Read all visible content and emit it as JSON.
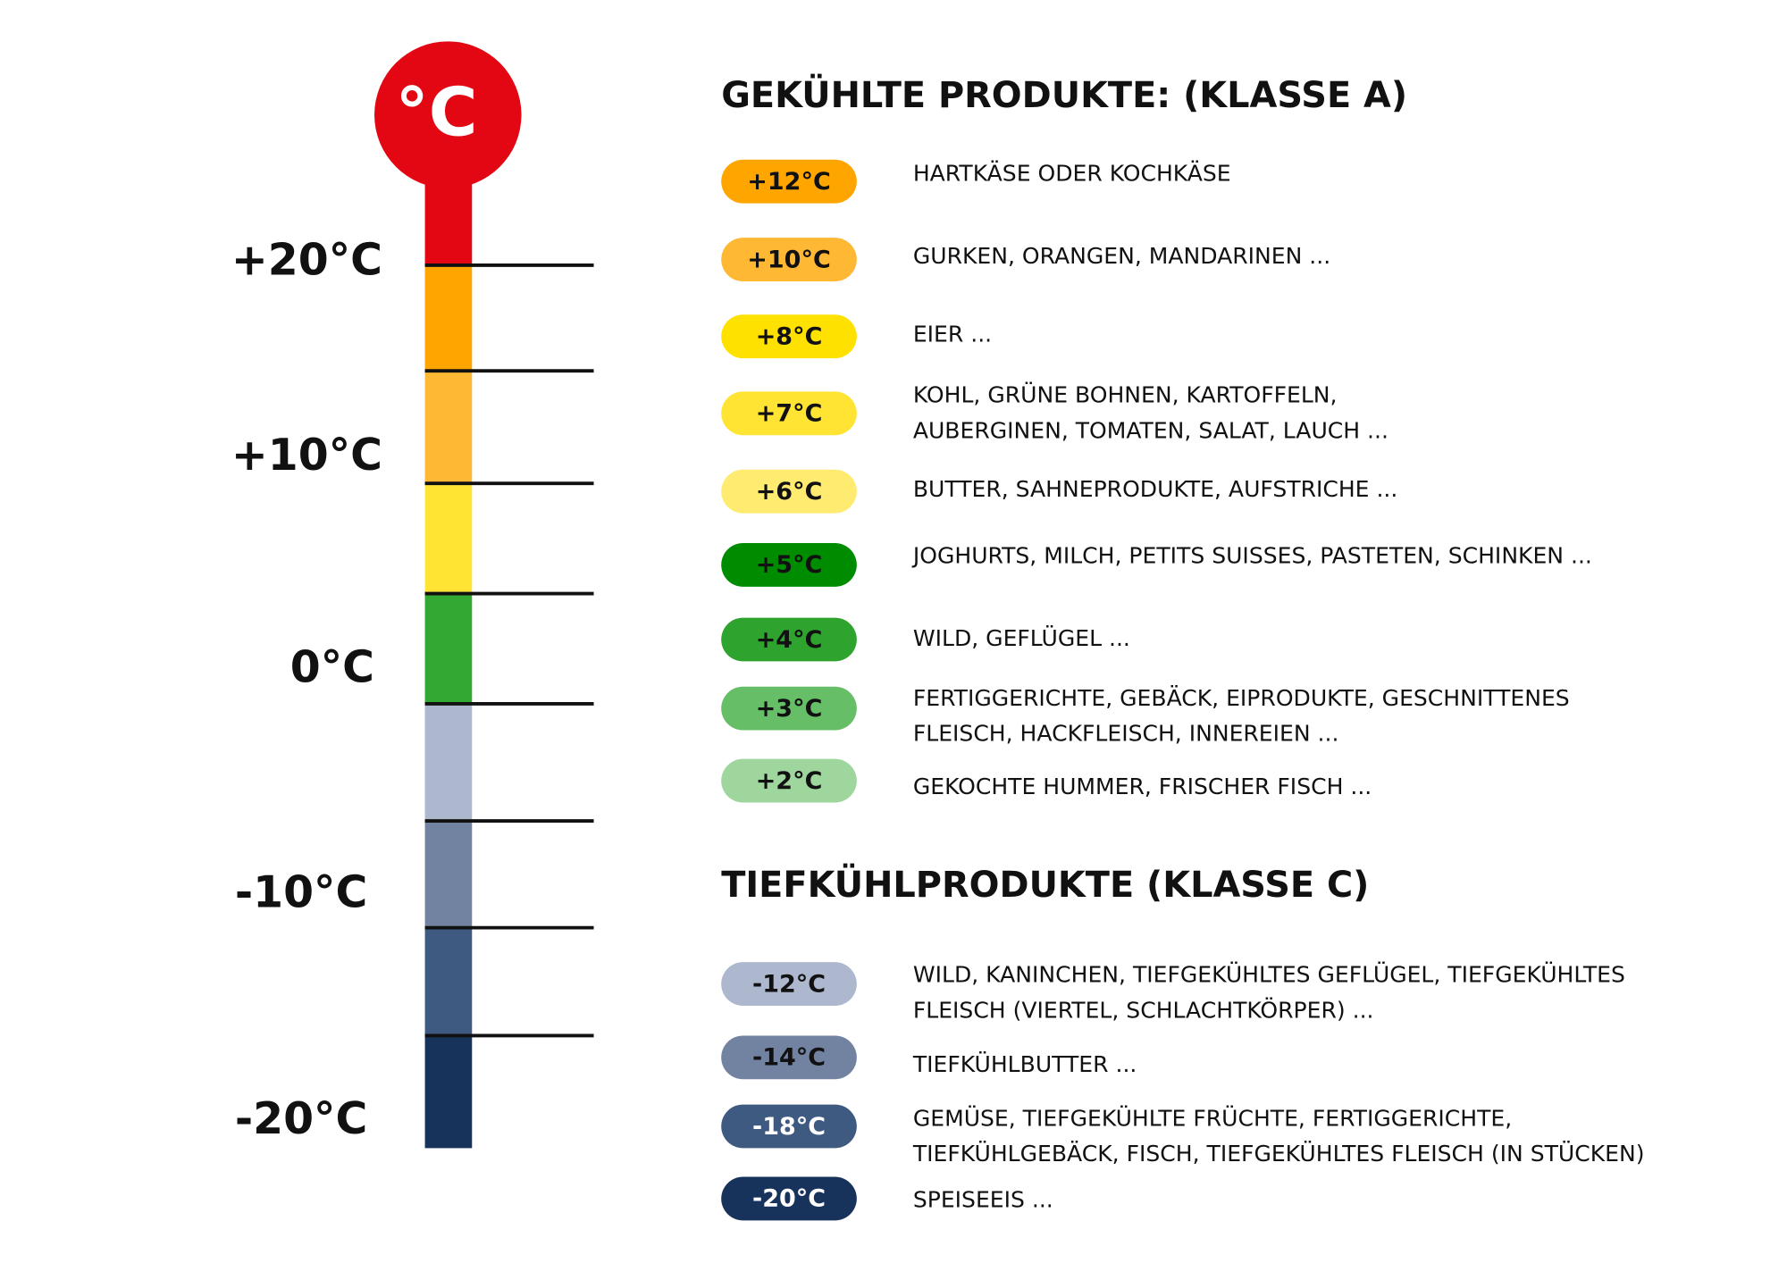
{
  "thermometer": {
    "bulb": "°C",
    "labels": [
      "+20°C",
      "+10°C",
      "0°C",
      "-10°C",
      "-20°C"
    ]
  },
  "sections": [
    {
      "title": "GEKÜHLTE PRODUKTE: (KLASSE A)",
      "items": [
        {
          "temp": "+12°C",
          "color": "#FFA500",
          "text_color": "#111",
          "lines": [
            "HARTKÄSE ODER KOCHKÄSE"
          ]
        },
        {
          "temp": "+10°C",
          "color": "#FFB833",
          "text_color": "#111",
          "lines": [
            "GURKEN, ORANGEN, MANDARINEN ..."
          ]
        },
        {
          "temp": "+8°C",
          "color": "#FFE100",
          "text_color": "#111",
          "lines": [
            "EIER ..."
          ]
        },
        {
          "temp": "+7°C",
          "color": "#FFE433",
          "text_color": "#111",
          "lines": [
            "KOHL, GRÜNE BOHNEN, KARTOFFELN,",
            "AUBERGINEN, TOMATEN, SALAT, LAUCH ..."
          ]
        },
        {
          "temp": "+6°C",
          "color": "#FFEB70",
          "text_color": "#111",
          "lines": [
            "BUTTER, SAHNEPRODUKTE, AUFSTRICHE ..."
          ]
        },
        {
          "temp": "+5°C",
          "color": "#008C00",
          "text_color": "#111",
          "lines": [
            "JOGHURTS, MILCH, PETITS SUISSES, PASTETEN, SCHINKEN ..."
          ]
        },
        {
          "temp": "+4°C",
          "color": "#2EA32E",
          "text_color": "#111",
          "lines": [
            "WILD, GEFLÜGEL ..."
          ]
        },
        {
          "temp": "+3°C",
          "color": "#66BE66",
          "text_color": "#111",
          "lines": [
            "FERTIGGERICHTE, GEBÄCK, EIPRODUKTE, GESCHNITTENES",
            "FLEISCH, HACKFLEISCH, INNEREIEN ..."
          ]
        },
        {
          "temp": "+2°C",
          "color": "#9ED69E",
          "text_color": "#111",
          "lines": [
            "GEKOCHTE HUMMER, FRISCHER FISCH ..."
          ]
        }
      ]
    },
    {
      "title": "TIEFKÜHLPRODUKTE (KLASSE C)",
      "items": [
        {
          "temp": "-12°C",
          "color": "#ADB8CF",
          "text_color": "#111",
          "lines": [
            "WILD, KANINCHEN, TIEFGEKÜHLTES GEFLÜGEL, TIEFGEKÜHLTES",
            "FLEISCH (VIERTEL, SCHLACHTKÖRPER) ..."
          ]
        },
        {
          "temp": "-14°C",
          "color": "#7282A1",
          "text_color": "#111",
          "lines": [
            "TIEFKÜHLBUTTER ..."
          ]
        },
        {
          "temp": "-18°C",
          "color": "#3F5A80",
          "text_color": "#fff",
          "lines": [
            "GEMÜSE, TIEFGEKÜHLTE FRÜCHTE, FERTIGGERICHTE,",
            "TIEFKÜHLGEBÄCK, FISCH, TIEFGEKÜHLTES FLEISCH (IN STÜCKEN)"
          ]
        },
        {
          "temp": "-20°C",
          "color": "#17335C",
          "text_color": "#fff",
          "lines": [
            "SPEISEEIS ..."
          ]
        }
      ]
    }
  ]
}
